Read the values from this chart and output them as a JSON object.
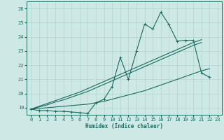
{
  "xlabel": "Humidex (Indice chaleur)",
  "bg_color": "#cde8e5",
  "grid_color": "#b0d4d0",
  "line_color": "#1a6b60",
  "xvalues": [
    0,
    1,
    2,
    3,
    4,
    5,
    6,
    7,
    8,
    9,
    10,
    11,
    12,
    13,
    14,
    15,
    16,
    17,
    18,
    19,
    20,
    21,
    22,
    23
  ],
  "y_jagged": [
    18.9,
    18.8,
    18.8,
    18.75,
    18.75,
    18.7,
    18.65,
    18.6,
    19.35,
    19.6,
    20.5,
    22.55,
    21.0,
    23.0,
    24.9,
    24.55,
    25.75,
    24.85,
    23.7,
    23.75,
    23.75,
    21.45,
    21.15,
    null
  ],
  "y_line_upper1": [
    18.9,
    19.1,
    19.3,
    19.5,
    19.7,
    19.9,
    20.1,
    20.35,
    20.6,
    20.85,
    21.1,
    21.35,
    21.6,
    21.85,
    22.1,
    22.35,
    22.6,
    22.85,
    23.1,
    23.35,
    23.6,
    23.8,
    null,
    null
  ],
  "y_line_upper2": [
    18.9,
    19.05,
    19.2,
    19.4,
    19.55,
    19.75,
    19.95,
    20.15,
    20.4,
    20.65,
    20.9,
    21.15,
    21.4,
    21.65,
    21.9,
    22.15,
    22.4,
    22.65,
    22.9,
    23.15,
    23.4,
    23.6,
    null,
    null
  ],
  "y_line_lower": [
    18.9,
    18.95,
    19.0,
    19.05,
    19.1,
    19.15,
    19.2,
    19.25,
    19.35,
    19.45,
    19.6,
    19.75,
    19.9,
    20.05,
    20.2,
    20.4,
    20.6,
    20.8,
    21.0,
    21.2,
    21.4,
    21.6,
    21.75,
    null
  ],
  "ylim": [
    18.5,
    26.5
  ],
  "xlim": [
    -0.5,
    23.5
  ],
  "yticks": [
    19,
    20,
    21,
    22,
    23,
    24,
    25,
    26
  ],
  "xticks": [
    0,
    1,
    2,
    3,
    4,
    5,
    6,
    7,
    8,
    9,
    10,
    11,
    12,
    13,
    14,
    15,
    16,
    17,
    18,
    19,
    20,
    21,
    22,
    23
  ]
}
